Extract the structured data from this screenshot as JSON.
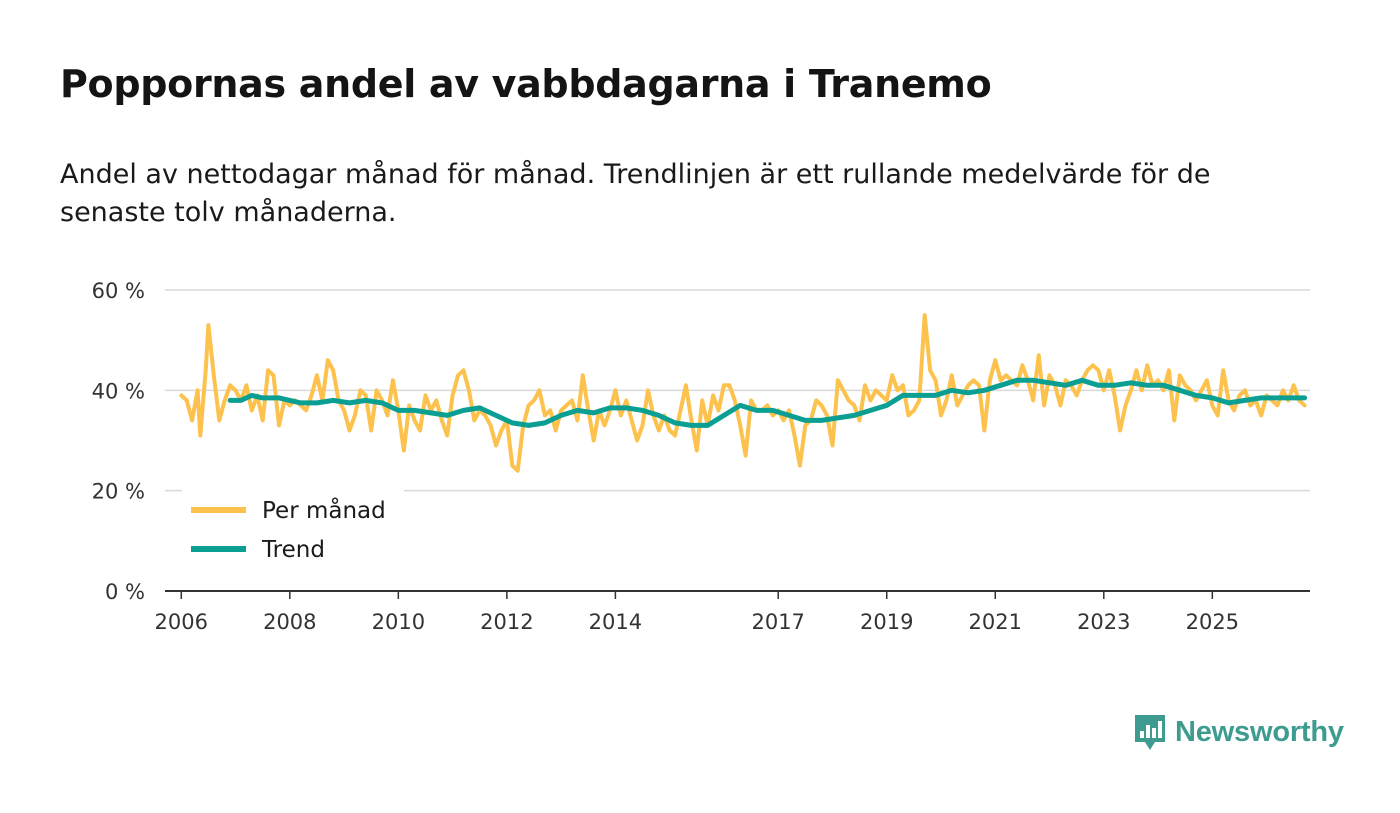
{
  "title": "Poppornas andel av vabbdagarna i Tranemo",
  "subtitle": "Andel av nettodagar månad för månad. Trendlinjen är ett rullande medelvärde för de senaste tolv månaderna.",
  "brand": {
    "name": "Newsworthy",
    "icon": "newsworthy-logo-icon",
    "color": "#3d9c8f"
  },
  "colors": {
    "monthly": "#fdc24d",
    "trend": "#0a9f92",
    "grid": "#d9d9d9",
    "axis": "#333333"
  },
  "chart_data": {
    "type": "line",
    "title": "Poppornas andel av vabbdagarna i Tranemo",
    "xlabel": "",
    "ylabel": "",
    "ylim": [
      0,
      60
    ],
    "xlim": [
      2005.7,
      2026.8
    ],
    "y_ticks": [
      {
        "value": 0,
        "label": "0 %"
      },
      {
        "value": 20,
        "label": "20 %"
      },
      {
        "value": 40,
        "label": "40 %"
      },
      {
        "value": 60,
        "label": "60 %"
      }
    ],
    "x_ticks": [
      {
        "value": 2006,
        "label": "2006"
      },
      {
        "value": 2008,
        "label": "2008"
      },
      {
        "value": 2010,
        "label": "2010"
      },
      {
        "value": 2012,
        "label": "2012"
      },
      {
        "value": 2014,
        "label": "2014"
      },
      {
        "value": 2017,
        "label": "2017"
      },
      {
        "value": 2019,
        "label": "2019"
      },
      {
        "value": 2021,
        "label": "2021"
      },
      {
        "value": 2023,
        "label": "2023"
      },
      {
        "value": 2025,
        "label": "2025"
      }
    ],
    "legend": {
      "position": "bottom-left"
    },
    "series": [
      {
        "name": "Per månad",
        "key": "monthly",
        "points": [
          [
            2006.0,
            39
          ],
          [
            2006.1,
            38
          ],
          [
            2006.2,
            34
          ],
          [
            2006.3,
            40
          ],
          [
            2006.35,
            31
          ],
          [
            2006.45,
            44
          ],
          [
            2006.5,
            53
          ],
          [
            2006.6,
            43
          ],
          [
            2006.7,
            34
          ],
          [
            2006.8,
            38
          ],
          [
            2006.9,
            41
          ],
          [
            2007.0,
            40
          ],
          [
            2007.1,
            38
          ],
          [
            2007.2,
            41
          ],
          [
            2007.3,
            36
          ],
          [
            2007.4,
            39
          ],
          [
            2007.5,
            34
          ],
          [
            2007.6,
            44
          ],
          [
            2007.7,
            43
          ],
          [
            2007.8,
            33
          ],
          [
            2007.9,
            38
          ],
          [
            2008.0,
            37
          ],
          [
            2008.1,
            38
          ],
          [
            2008.2,
            37
          ],
          [
            2008.3,
            36
          ],
          [
            2008.4,
            39
          ],
          [
            2008.5,
            43
          ],
          [
            2008.6,
            38
          ],
          [
            2008.7,
            46
          ],
          [
            2008.8,
            44
          ],
          [
            2008.9,
            38
          ],
          [
            2009.0,
            36
          ],
          [
            2009.1,
            32
          ],
          [
            2009.2,
            35
          ],
          [
            2009.3,
            40
          ],
          [
            2009.4,
            39
          ],
          [
            2009.5,
            32
          ],
          [
            2009.6,
            40
          ],
          [
            2009.7,
            38
          ],
          [
            2009.8,
            35
          ],
          [
            2009.9,
            42
          ],
          [
            2010.0,
            36
          ],
          [
            2010.1,
            28
          ],
          [
            2010.2,
            37
          ],
          [
            2010.3,
            34
          ],
          [
            2010.4,
            32
          ],
          [
            2010.5,
            39
          ],
          [
            2010.6,
            36
          ],
          [
            2010.7,
            38
          ],
          [
            2010.8,
            34
          ],
          [
            2010.9,
            31
          ],
          [
            2011.0,
            39
          ],
          [
            2011.1,
            43
          ],
          [
            2011.2,
            44
          ],
          [
            2011.3,
            40
          ],
          [
            2011.4,
            34
          ],
          [
            2011.5,
            36
          ],
          [
            2011.6,
            35
          ],
          [
            2011.7,
            33
          ],
          [
            2011.8,
            29
          ],
          [
            2011.9,
            32
          ],
          [
            2012.0,
            34
          ],
          [
            2012.1,
            25
          ],
          [
            2012.2,
            24
          ],
          [
            2012.3,
            33
          ],
          [
            2012.4,
            37
          ],
          [
            2012.5,
            38
          ],
          [
            2012.6,
            40
          ],
          [
            2012.7,
            35
          ],
          [
            2012.8,
            36
          ],
          [
            2012.9,
            32
          ],
          [
            2013.0,
            36
          ],
          [
            2013.1,
            37
          ],
          [
            2013.2,
            38
          ],
          [
            2013.3,
            34
          ],
          [
            2013.4,
            43
          ],
          [
            2013.5,
            36
          ],
          [
            2013.6,
            30
          ],
          [
            2013.7,
            36
          ],
          [
            2013.8,
            33
          ],
          [
            2013.9,
            36
          ],
          [
            2014.0,
            40
          ],
          [
            2014.1,
            35
          ],
          [
            2014.2,
            38
          ],
          [
            2014.3,
            34
          ],
          [
            2014.4,
            30
          ],
          [
            2014.5,
            33
          ],
          [
            2014.6,
            40
          ],
          [
            2014.7,
            35
          ],
          [
            2014.8,
            32
          ],
          [
            2014.9,
            35
          ],
          [
            2015.0,
            32
          ],
          [
            2015.1,
            31
          ],
          [
            2015.2,
            36
          ],
          [
            2015.3,
            41
          ],
          [
            2015.4,
            34
          ],
          [
            2015.5,
            28
          ],
          [
            2015.6,
            38
          ],
          [
            2015.7,
            33
          ],
          [
            2015.8,
            39
          ],
          [
            2015.9,
            36
          ],
          [
            2016.0,
            41
          ],
          [
            2016.1,
            41
          ],
          [
            2016.2,
            38
          ],
          [
            2016.3,
            33
          ],
          [
            2016.4,
            27
          ],
          [
            2016.5,
            38
          ],
          [
            2016.6,
            36
          ],
          [
            2016.7,
            36
          ],
          [
            2016.8,
            37
          ],
          [
            2016.9,
            35
          ],
          [
            2017.0,
            36
          ],
          [
            2017.1,
            34
          ],
          [
            2017.2,
            36
          ],
          [
            2017.3,
            31
          ],
          [
            2017.4,
            25
          ],
          [
            2017.5,
            33
          ],
          [
            2017.6,
            34
          ],
          [
            2017.7,
            38
          ],
          [
            2017.8,
            37
          ],
          [
            2017.9,
            35
          ],
          [
            2018.0,
            29
          ],
          [
            2018.1,
            42
          ],
          [
            2018.2,
            40
          ],
          [
            2018.3,
            38
          ],
          [
            2018.4,
            37
          ],
          [
            2018.5,
            34
          ],
          [
            2018.6,
            41
          ],
          [
            2018.7,
            38
          ],
          [
            2018.8,
            40
          ],
          [
            2018.9,
            39
          ],
          [
            2019.0,
            38
          ],
          [
            2019.1,
            43
          ],
          [
            2019.2,
            40
          ],
          [
            2019.3,
            41
          ],
          [
            2019.4,
            35
          ],
          [
            2019.5,
            36
          ],
          [
            2019.6,
            38
          ],
          [
            2019.7,
            55
          ],
          [
            2019.8,
            44
          ],
          [
            2019.9,
            42
          ],
          [
            2020.0,
            35
          ],
          [
            2020.1,
            38
          ],
          [
            2020.2,
            43
          ],
          [
            2020.3,
            37
          ],
          [
            2020.4,
            39
          ],
          [
            2020.5,
            41
          ],
          [
            2020.6,
            42
          ],
          [
            2020.7,
            41
          ],
          [
            2020.8,
            32
          ],
          [
            2020.9,
            42
          ],
          [
            2021.0,
            46
          ],
          [
            2021.1,
            42
          ],
          [
            2021.2,
            43
          ],
          [
            2021.3,
            42
          ],
          [
            2021.4,
            41
          ],
          [
            2021.5,
            45
          ],
          [
            2021.6,
            42
          ],
          [
            2021.7,
            38
          ],
          [
            2021.8,
            47
          ],
          [
            2021.9,
            37
          ],
          [
            2022.0,
            43
          ],
          [
            2022.1,
            41
          ],
          [
            2022.2,
            37
          ],
          [
            2022.3,
            42
          ],
          [
            2022.4,
            41
          ],
          [
            2022.5,
            39
          ],
          [
            2022.6,
            42
          ],
          [
            2022.7,
            44
          ],
          [
            2022.8,
            45
          ],
          [
            2022.9,
            44
          ],
          [
            2023.0,
            40
          ],
          [
            2023.1,
            44
          ],
          [
            2023.2,
            39
          ],
          [
            2023.3,
            32
          ],
          [
            2023.4,
            37
          ],
          [
            2023.5,
            40
          ],
          [
            2023.6,
            44
          ],
          [
            2023.7,
            40
          ],
          [
            2023.8,
            45
          ],
          [
            2023.9,
            41
          ],
          [
            2024.0,
            42
          ],
          [
            2024.1,
            40
          ],
          [
            2024.2,
            44
          ],
          [
            2024.3,
            34
          ],
          [
            2024.4,
            43
          ],
          [
            2024.5,
            41
          ],
          [
            2024.6,
            40
          ],
          [
            2024.7,
            38
          ],
          [
            2024.8,
            40
          ],
          [
            2024.9,
            42
          ],
          [
            2025.0,
            37
          ],
          [
            2025.1,
            35
          ],
          [
            2025.2,
            44
          ],
          [
            2025.3,
            38
          ],
          [
            2025.4,
            36
          ],
          [
            2025.5,
            39
          ],
          [
            2025.6,
            40
          ],
          [
            2025.7,
            37
          ],
          [
            2025.8,
            38
          ],
          [
            2025.9,
            35
          ],
          [
            2026.0,
            39
          ],
          [
            2026.1,
            38
          ],
          [
            2026.2,
            37
          ],
          [
            2026.3,
            40
          ],
          [
            2026.4,
            38
          ],
          [
            2026.5,
            41
          ],
          [
            2026.6,
            38
          ],
          [
            2026.7,
            37
          ]
        ]
      },
      {
        "name": "Trend",
        "key": "trend",
        "points": [
          [
            2006.9,
            38
          ],
          [
            2007.1,
            38
          ],
          [
            2007.3,
            39
          ],
          [
            2007.5,
            38.5
          ],
          [
            2007.8,
            38.5
          ],
          [
            2008.0,
            38
          ],
          [
            2008.2,
            37.5
          ],
          [
            2008.5,
            37.5
          ],
          [
            2008.8,
            38
          ],
          [
            2009.1,
            37.5
          ],
          [
            2009.4,
            38
          ],
          [
            2009.7,
            37.5
          ],
          [
            2010.0,
            36
          ],
          [
            2010.3,
            36
          ],
          [
            2010.6,
            35.5
          ],
          [
            2010.9,
            35
          ],
          [
            2011.2,
            36
          ],
          [
            2011.5,
            36.5
          ],
          [
            2011.8,
            35
          ],
          [
            2012.1,
            33.5
          ],
          [
            2012.4,
            33
          ],
          [
            2012.7,
            33.5
          ],
          [
            2013.0,
            35
          ],
          [
            2013.3,
            36
          ],
          [
            2013.6,
            35.5
          ],
          [
            2013.9,
            36.5
          ],
          [
            2014.2,
            36.5
          ],
          [
            2014.5,
            36
          ],
          [
            2014.8,
            35
          ],
          [
            2015.1,
            33.5
          ],
          [
            2015.4,
            33
          ],
          [
            2015.7,
            33
          ],
          [
            2016.0,
            35
          ],
          [
            2016.3,
            37
          ],
          [
            2016.6,
            36
          ],
          [
            2016.9,
            36
          ],
          [
            2017.2,
            35
          ],
          [
            2017.5,
            34
          ],
          [
            2017.8,
            34
          ],
          [
            2018.1,
            34.5
          ],
          [
            2018.4,
            35
          ],
          [
            2018.7,
            36
          ],
          [
            2019.0,
            37
          ],
          [
            2019.3,
            39
          ],
          [
            2019.6,
            39
          ],
          [
            2019.9,
            39
          ],
          [
            2020.2,
            40
          ],
          [
            2020.5,
            39.5
          ],
          [
            2020.8,
            40
          ],
          [
            2021.1,
            41
          ],
          [
            2021.4,
            42
          ],
          [
            2021.7,
            42
          ],
          [
            2022.0,
            41.5
          ],
          [
            2022.3,
            41
          ],
          [
            2022.6,
            42
          ],
          [
            2022.9,
            41
          ],
          [
            2023.2,
            41
          ],
          [
            2023.5,
            41.5
          ],
          [
            2023.8,
            41
          ],
          [
            2024.1,
            41
          ],
          [
            2024.4,
            40
          ],
          [
            2024.7,
            39
          ],
          [
            2025.0,
            38.5
          ],
          [
            2025.3,
            37.5
          ],
          [
            2025.6,
            38
          ],
          [
            2025.9,
            38.5
          ],
          [
            2026.2,
            38.5
          ],
          [
            2026.5,
            38.5
          ],
          [
            2026.7,
            38.5
          ]
        ]
      }
    ]
  }
}
